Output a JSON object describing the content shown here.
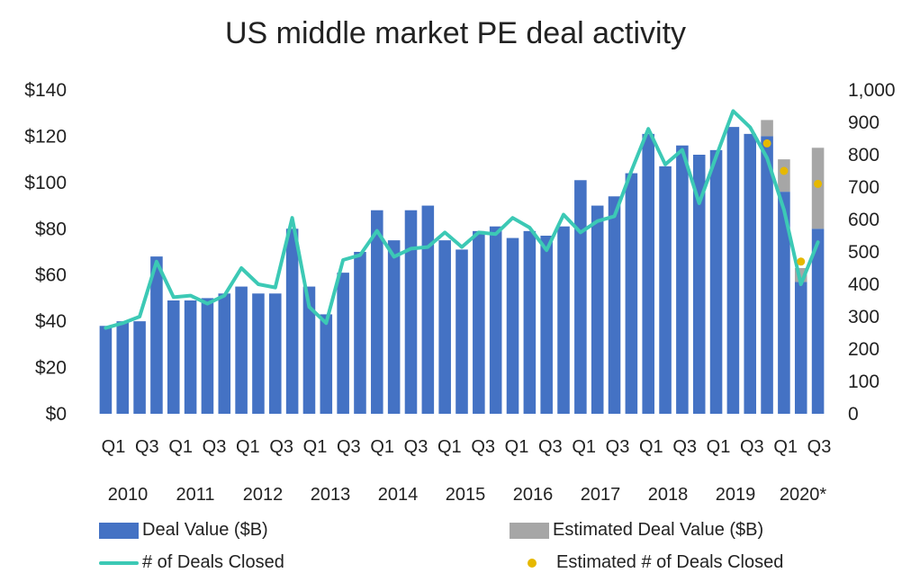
{
  "chart_data": {
    "type": "bar",
    "title": "US middle market PE deal activity",
    "colors": {
      "deal_value": "#4472C4",
      "estimated_deal_value": "#A6A6A6",
      "deals_closed": "#3CC9B5",
      "estimated_deals_closed": "#E6B800"
    },
    "x_tick_labels": [
      "Q1",
      "Q3",
      "Q1",
      "Q3",
      "Q1",
      "Q3",
      "Q1",
      "Q3",
      "Q1",
      "Q3",
      "Q1",
      "Q3",
      "Q1",
      "Q3",
      "Q1",
      "Q3",
      "Q1",
      "Q3",
      "Q1",
      "Q3",
      "Q1",
      "Q3"
    ],
    "year_labels": [
      "2010",
      "2011",
      "2012",
      "2013",
      "2014",
      "2015",
      "2016",
      "2017",
      "2018",
      "2019",
      "2020*"
    ],
    "y_left": {
      "min": 0,
      "max": 140,
      "ticks": [
        "$0",
        "$20",
        "$40",
        "$60",
        "$80",
        "$100",
        "$120",
        "$140"
      ]
    },
    "y_right": {
      "min": 0,
      "max": 1000,
      "ticks": [
        "0",
        "100",
        "200",
        "300",
        "400",
        "500",
        "600",
        "700",
        "800",
        "900",
        "1,000"
      ]
    },
    "categories": [
      "2010 Q1",
      "2010 Q2",
      "2010 Q3",
      "2010 Q4",
      "2011 Q1",
      "2011 Q2",
      "2011 Q3",
      "2011 Q4",
      "2012 Q1",
      "2012 Q2",
      "2012 Q3",
      "2012 Q4",
      "2013 Q1",
      "2013 Q2",
      "2013 Q3",
      "2013 Q4",
      "2014 Q1",
      "2014 Q2",
      "2014 Q3",
      "2014 Q4",
      "2015 Q1",
      "2015 Q2",
      "2015 Q3",
      "2015 Q4",
      "2016 Q1",
      "2016 Q2",
      "2016 Q3",
      "2016 Q4",
      "2017 Q1",
      "2017 Q2",
      "2017 Q3",
      "2017 Q4",
      "2018 Q1",
      "2018 Q2",
      "2018 Q3",
      "2018 Q4",
      "2019 Q1",
      "2019 Q2",
      "2019 Q3",
      "2019 Q4",
      "2020 Q1",
      "2020 Q2",
      "2020 Q3"
    ],
    "series": [
      {
        "name": "Deal Value ($B)",
        "axis": "left",
        "values": [
          38,
          40,
          40,
          68,
          49,
          49,
          50,
          52,
          55,
          52,
          52,
          80,
          55,
          43,
          61,
          70,
          88,
          75,
          88,
          90,
          75,
          71,
          79,
          81,
          76,
          79,
          77,
          81,
          101,
          90,
          94,
          104,
          121,
          107,
          116,
          112,
          114,
          124,
          121,
          120,
          96,
          57,
          80
        ]
      },
      {
        "name": "Estimated Deal Value ($B)",
        "axis": "left",
        "values": [
          0,
          0,
          0,
          0,
          0,
          0,
          0,
          0,
          0,
          0,
          0,
          0,
          0,
          0,
          0,
          0,
          0,
          0,
          0,
          0,
          0,
          0,
          0,
          0,
          0,
          0,
          0,
          0,
          0,
          0,
          0,
          0,
          0,
          0,
          0,
          0,
          0,
          0,
          0,
          7,
          14,
          6,
          35
        ]
      },
      {
        "name": "# of Deals Closed",
        "axis": "right",
        "values": [
          265,
          280,
          300,
          470,
          360,
          365,
          340,
          365,
          450,
          400,
          390,
          605,
          330,
          280,
          475,
          490,
          565,
          485,
          510,
          515,
          560,
          515,
          560,
          555,
          605,
          575,
          505,
          615,
          560,
          595,
          610,
          750,
          880,
          770,
          815,
          650,
          795,
          935,
          885,
          790,
          630,
          400,
          530
        ]
      },
      {
        "name": "Estimated # of Deals Closed",
        "axis": "right",
        "values": [
          null,
          null,
          null,
          null,
          null,
          null,
          null,
          null,
          null,
          null,
          null,
          null,
          null,
          null,
          null,
          null,
          null,
          null,
          null,
          null,
          null,
          null,
          null,
          null,
          null,
          null,
          null,
          null,
          null,
          null,
          null,
          null,
          null,
          null,
          null,
          null,
          null,
          null,
          null,
          835,
          750,
          470,
          710
        ]
      }
    ],
    "legend": [
      {
        "label": "Deal Value ($B)",
        "kind": "bar",
        "color": "#4472C4"
      },
      {
        "label": "Estimated Deal Value ($B)",
        "kind": "bar",
        "color": "#A6A6A6"
      },
      {
        "label": "# of Deals Closed",
        "kind": "line",
        "color": "#3CC9B5"
      },
      {
        "label": "Estimated # of Deals Closed",
        "kind": "dot",
        "color": "#E6B800"
      }
    ],
    "legend_position": "bottom",
    "grid": false
  }
}
